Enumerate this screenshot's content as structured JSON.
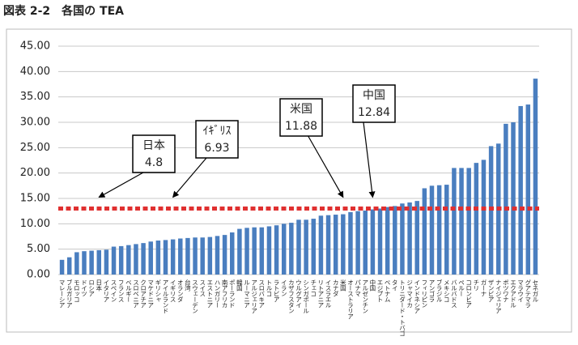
{
  "chart_data": {
    "type": "bar",
    "title": "図表 2-2　各国の TEA",
    "categories": [
      "マレーシア",
      "ブルガリア",
      "モロッコ",
      "ドイツ",
      "ロシア",
      "日本",
      "イタリア",
      "スペイン",
      "フランス",
      "ベルギー",
      "スロベニア",
      "クロアチア",
      "マケドニア",
      "ギリシャ",
      "アイルランド",
      "イギリス",
      "オランダ",
      "台湾",
      "スウェーデン",
      "スイス",
      "エストニア",
      "ハンガリー",
      "南アフリカ",
      "ポーランド",
      "韓国",
      "ルーマニア",
      "アルジェリア",
      "スロバキア",
      "トルコ",
      "ラトビア",
      "イラン",
      "カザフスタン",
      "ウルグアイ",
      "シンガポール",
      "チェコ",
      "リトアニア",
      "イスラエル",
      "カナダ",
      "米国",
      "オーストラリア",
      "パナマ",
      "アルゼンチン",
      "中国",
      "エジプト",
      "ベトナム",
      "タイ",
      "トリニダード・トバゴ",
      "ジャマイカ",
      "インドネシア",
      "フィリピン",
      "アンゴラ",
      "ブラジル",
      "メキシコ",
      "バルバドス",
      "ペルー",
      "コロンビア",
      "チリ",
      "ガーナ",
      "ザンビア",
      "ナイジェリア",
      "ボツワナ",
      "エクアドル",
      "マラウイ",
      "グアテマラ",
      "セネガル"
    ],
    "values": [
      2.9,
      3.4,
      4.4,
      4.6,
      4.7,
      4.8,
      4.9,
      5.5,
      5.6,
      5.8,
      6.0,
      6.2,
      6.5,
      6.7,
      6.8,
      6.93,
      7.1,
      7.2,
      7.3,
      7.3,
      7.4,
      7.6,
      7.8,
      8.3,
      9.0,
      9.2,
      9.3,
      9.3,
      9.5,
      9.7,
      10.0,
      10.2,
      10.8,
      10.8,
      11.0,
      11.6,
      11.7,
      11.8,
      11.88,
      12.3,
      12.5,
      12.6,
      12.84,
      13.0,
      13.3,
      13.5,
      14.0,
      14.2,
      14.5,
      17.0,
      17.5,
      17.6,
      17.7,
      21.0,
      21.0,
      21.0,
      22.0,
      22.6,
      25.3,
      25.8,
      29.7,
      30.0,
      33.2,
      33.5,
      38.6
    ],
    "color": "#4a7ebf",
    "ylim": [
      0,
      45
    ],
    "yticks": [
      {
        "value": 0,
        "label": "0.00"
      },
      {
        "value": 5,
        "label": "5.00"
      },
      {
        "value": 10,
        "label": "10.00"
      },
      {
        "value": 15,
        "label": "15.00"
      },
      {
        "value": 20,
        "label": "20.00"
      },
      {
        "value": 25,
        "label": "25.00"
      },
      {
        "value": 30,
        "label": "30.00"
      },
      {
        "value": 35,
        "label": "35.00"
      },
      {
        "value": 40,
        "label": "40.00"
      },
      {
        "value": 45,
        "label": "45.00"
      }
    ],
    "grid": true,
    "reference_line": {
      "value": 13.0,
      "color": "#e03030"
    },
    "annotations": [
      {
        "text": "日本",
        "value": 4.8
      },
      {
        "text": "ｲｷﾞﾘｽ",
        "value": 6.93
      },
      {
        "text": "米国",
        "value": 11.88
      },
      {
        "text": "中国",
        "value": 12.84
      }
    ]
  }
}
